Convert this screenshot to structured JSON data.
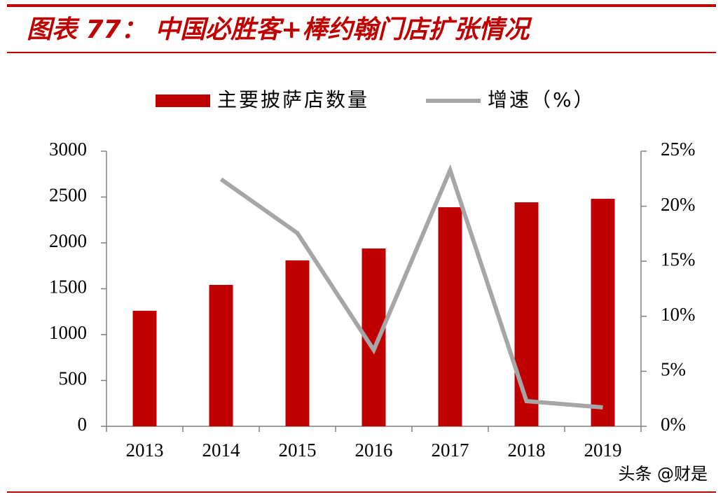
{
  "chart_data": {
    "type": "bar_line",
    "title": "图表 77： 中国必胜客+棒约翰门店扩张情况",
    "categories": [
      "2013",
      "2014",
      "2015",
      "2016",
      "2017",
      "2018",
      "2019"
    ],
    "series": [
      {
        "name": "主要披萨店数量",
        "type": "bar",
        "color": "#c00000",
        "values": [
          1260,
          1542,
          1809,
          1939,
          2389,
          2443,
          2481
        ]
      },
      {
        "name": "增速（%）",
        "type": "line",
        "axis": "y2",
        "color": "#a6a6a6",
        "values": [
          null,
          22.45,
          17.56,
          6.93,
          23.28,
          2.29,
          1.72
        ]
      }
    ],
    "ylim": [
      0,
      3000
    ],
    "yticks": [
      0,
      500,
      1000,
      1500,
      2000,
      2500,
      3000
    ],
    "y2lim": [
      0,
      25
    ],
    "y2ticks": [
      {
        "value": 0,
        "label": "0%"
      },
      {
        "value": 5,
        "label": "5%"
      },
      {
        "value": 10,
        "label": "10%"
      },
      {
        "value": 15,
        "label": "15%"
      },
      {
        "value": 20,
        "label": "20%"
      },
      {
        "value": 25,
        "label": "25%"
      }
    ],
    "legend": "top",
    "watermark": "头条 @财是"
  }
}
